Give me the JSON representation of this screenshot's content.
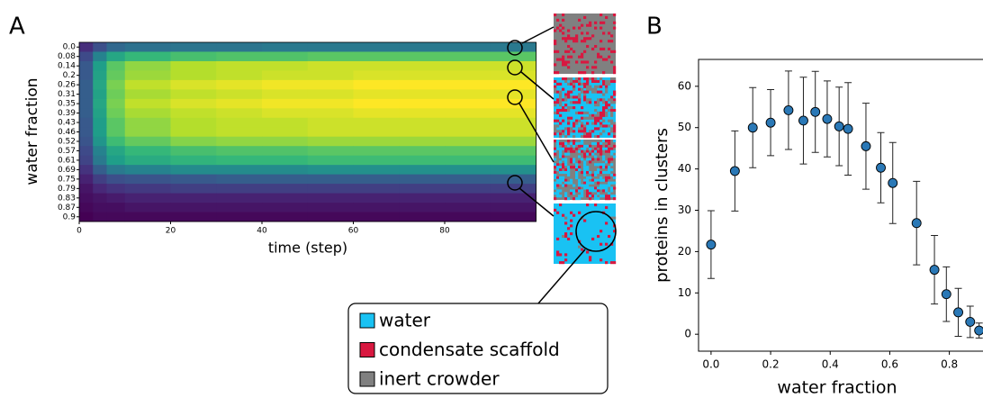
{
  "chart_data": [
    {
      "type": "heatmap",
      "panel_label": "A",
      "xlabel": "time (step)",
      "ylabel": "water fraction",
      "categories": [
        "0.0",
        "0.08",
        "0.14",
        "0.2",
        "0.26",
        "0.31",
        "0.35",
        "0.39",
        "0.43",
        "0.46",
        "0.52",
        "0.57",
        "0.61",
        "0.69",
        "0.75",
        "0.79",
        "0.83",
        "0.87",
        "0.9"
      ],
      "bins": [
        0,
        3,
        6,
        10,
        20,
        30,
        40,
        50,
        60,
        70,
        80,
        90,
        100
      ],
      "values": [
        [
          7,
          13,
          18,
          20,
          21,
          21,
          22,
          22,
          22,
          22,
          22,
          22
        ],
        [
          12,
          24,
          32,
          36,
          38,
          39,
          39,
          40,
          40,
          40,
          40,
          40
        ],
        [
          15,
          30,
          40,
          45,
          48,
          49,
          49,
          50,
          50,
          50,
          50,
          50
        ],
        [
          15,
          31,
          41,
          46,
          48,
          49,
          50,
          50,
          51,
          51,
          51,
          51
        ],
        [
          16,
          32,
          43,
          49,
          51,
          52,
          53,
          53,
          54,
          54,
          54,
          54
        ],
        [
          16,
          31,
          42,
          47,
          49,
          50,
          51,
          51,
          52,
          52,
          52,
          52
        ],
        [
          16,
          32,
          43,
          49,
          51,
          52,
          53,
          53,
          54,
          54,
          54,
          54
        ],
        [
          16,
          31,
          42,
          47,
          49,
          50,
          51,
          51,
          52,
          52,
          52,
          52
        ],
        [
          15,
          30,
          40,
          45,
          48,
          49,
          49,
          50,
          50,
          50,
          50,
          50
        ],
        [
          15,
          30,
          40,
          45,
          48,
          49,
          49,
          50,
          50,
          50,
          50,
          50
        ],
        [
          14,
          28,
          37,
          41,
          44,
          45,
          45,
          46,
          46,
          46,
          46,
          46
        ],
        [
          12,
          24,
          32,
          36,
          38,
          39,
          39,
          40,
          40,
          40,
          40,
          40
        ],
        [
          11,
          22,
          30,
          33,
          35,
          36,
          36,
          37,
          37,
          37,
          37,
          37
        ],
        [
          8,
          16,
          22,
          24,
          26,
          26,
          26,
          27,
          27,
          27,
          27,
          27
        ],
        [
          5,
          10,
          13,
          14,
          15,
          16,
          16,
          16,
          16,
          16,
          16,
          16
        ],
        [
          3,
          6,
          8,
          9,
          10,
          10,
          10,
          10,
          10,
          10,
          10,
          10
        ],
        [
          2,
          3,
          4,
          5,
          5,
          5,
          5,
          5,
          5,
          5,
          5,
          5
        ],
        [
          1,
          2,
          2,
          3,
          3,
          3,
          3,
          3,
          3,
          3,
          3,
          3
        ],
        [
          0,
          1,
          1,
          1,
          1,
          1,
          1,
          1,
          1,
          1,
          1,
          1
        ]
      ],
      "xlim": [
        0,
        100
      ],
      "xticks": [
        0,
        20,
        40,
        60,
        80
      ],
      "colormap": "viridis",
      "legend": [
        {
          "name": "water",
          "color": "#19c2f3"
        },
        {
          "name": "condensate scaffold",
          "color": "#d81840"
        },
        {
          "name": "inert crowder",
          "color": "#808080"
        }
      ]
    },
    {
      "type": "scatter",
      "panel_label": "B",
      "xlabel": "water fraction",
      "ylabel": "proteins in clusters",
      "x": [
        0.0,
        0.08,
        0.14,
        0.2,
        0.26,
        0.31,
        0.35,
        0.39,
        0.43,
        0.46,
        0.52,
        0.57,
        0.61,
        0.69,
        0.75,
        0.79,
        0.83,
        0.87,
        0.9
      ],
      "values": [
        21.7,
        39.5,
        50,
        51.2,
        54.2,
        51.7,
        53.8,
        52.1,
        50.3,
        49.7,
        45.5,
        40.3,
        36.6,
        26.9,
        15.6,
        9.7,
        5.3,
        3.0,
        0.9
      ],
      "errors": [
        8.2,
        9.7,
        9.7,
        8.0,
        9.5,
        10.5,
        9.8,
        9.2,
        9.5,
        11.2,
        10.4,
        8.5,
        9.8,
        10.1,
        8.3,
        6.6,
        5.8,
        3.8,
        1.8
      ],
      "color": "#2a78b6",
      "xlim": [
        -0.042,
        0.913
      ],
      "ylim": [
        -4.1,
        66.5
      ],
      "xticks": [
        {
          "value": 0,
          "label": "0.0"
        },
        0.2,
        0.4,
        0.6,
        0.8
      ],
      "yticks": [
        0,
        10,
        20,
        30,
        40,
        50,
        60
      ]
    }
  ]
}
